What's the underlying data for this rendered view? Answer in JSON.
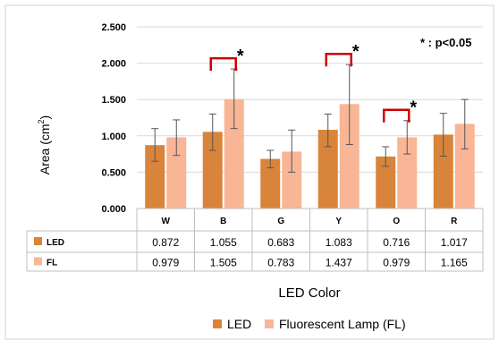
{
  "chart_data": {
    "type": "bar",
    "ylabel_main": "Area (cm",
    "ylabel_sup": "2",
    "ylabel_close": ")",
    "xlabel": "LED Color",
    "ylim": [
      0,
      2.5
    ],
    "y_ticks": [
      "0.000",
      "0.500",
      "1.000",
      "1.500",
      "2.000",
      "2.500"
    ],
    "categories": [
      "W",
      "B",
      "G",
      "Y",
      "O",
      "R"
    ],
    "series": [
      {
        "name": "LED",
        "table_label": "LED",
        "color": "#d9843b",
        "values": [
          0.872,
          1.055,
          0.683,
          1.083,
          0.716,
          1.017
        ],
        "value_labels": [
          "0.872",
          "1.055",
          "0.683",
          "1.083",
          "0.716",
          "1.017"
        ],
        "error_low": [
          0.65,
          0.8,
          0.56,
          0.85,
          0.58,
          0.72
        ],
        "error_high": [
          1.1,
          1.3,
          0.8,
          1.3,
          0.85,
          1.31
        ]
      },
      {
        "name": "Fluorescent Lamp (FL)",
        "table_label": "FL",
        "color": "#f8b696",
        "values": [
          0.979,
          1.505,
          0.783,
          1.437,
          0.979,
          1.165
        ],
        "value_labels": [
          "0.979",
          "1.505",
          "0.783",
          "1.437",
          "0.979",
          "1.165"
        ],
        "error_low": [
          0.73,
          1.1,
          0.5,
          0.88,
          0.75,
          0.82
        ],
        "error_high": [
          1.22,
          1.92,
          1.08,
          1.98,
          1.21,
          1.5
        ]
      }
    ],
    "significance": {
      "categories": [
        1,
        3,
        4
      ],
      "marker": "*"
    },
    "annotation": "* : p<0.05",
    "grid": true,
    "legend_placement": "bottom"
  }
}
